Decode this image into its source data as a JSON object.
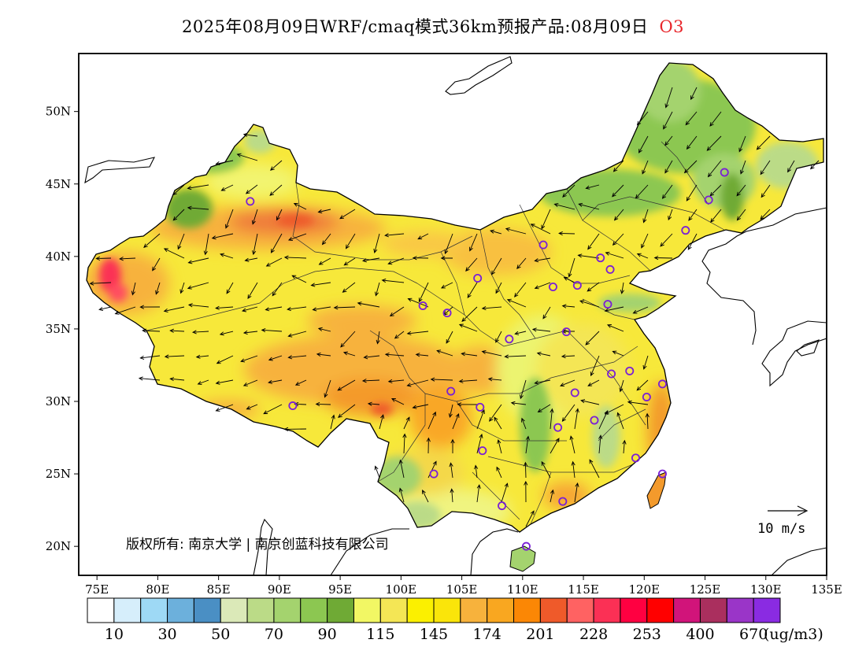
{
  "title": {
    "text": "2025年08月09日WRF/cmaq模式36km预报产品:08月09日",
    "species": "O3",
    "species_color": "#e8262b"
  },
  "map": {
    "lon_ticks": [
      "75E",
      "80E",
      "85E",
      "90E",
      "95E",
      "100E",
      "105E",
      "110E",
      "115E",
      "120E",
      "125E",
      "130E",
      "135E"
    ],
    "lat_ticks": [
      "20N",
      "25N",
      "30N",
      "35N",
      "40N",
      "45N",
      "50N"
    ],
    "lon_range": [
      73.5,
      135
    ],
    "lat_range": [
      18,
      54
    ],
    "copyright": "版权所有: 南京大学 | 南京创蓝科技有限公司",
    "wind_reference": "10 m/s"
  },
  "colorbar": {
    "unit": "(ug/m3)",
    "labels": [
      "10",
      "30",
      "50",
      "70",
      "90",
      "115",
      "145",
      "174",
      "201",
      "228",
      "253",
      "400",
      "670"
    ],
    "colors": [
      "#ffffff",
      "#d6eefb",
      "#9ed9f5",
      "#6cb0dc",
      "#4a8fc4",
      "#dbe9b8",
      "#bbdb87",
      "#a4d36e",
      "#8cc751",
      "#6faa35",
      "#f2f764",
      "#f4e655",
      "#fbf000",
      "#fae50a",
      "#f7b23c",
      "#f9a720",
      "#fb8705",
      "#ef5a2a",
      "#ff6262",
      "#fb3055",
      "#ff0041",
      "#ff0000",
      "#d1147a",
      "#aa2f5e",
      "#9a35c8",
      "#8a2be2"
    ]
  },
  "stations": [
    {
      "lon": 87.6,
      "lat": 43.8
    },
    {
      "lon": 101.8,
      "lat": 36.6
    },
    {
      "lon": 103.8,
      "lat": 36.1
    },
    {
      "lon": 106.3,
      "lat": 38.5
    },
    {
      "lon": 111.7,
      "lat": 40.8
    },
    {
      "lon": 112.5,
      "lat": 37.9
    },
    {
      "lon": 114.5,
      "lat": 38.0
    },
    {
      "lon": 116.4,
      "lat": 39.9
    },
    {
      "lon": 117.2,
      "lat": 39.1
    },
    {
      "lon": 123.4,
      "lat": 41.8
    },
    {
      "lon": 125.3,
      "lat": 43.9
    },
    {
      "lon": 126.6,
      "lat": 45.8
    },
    {
      "lon": 117.0,
      "lat": 36.7
    },
    {
      "lon": 113.6,
      "lat": 34.8
    },
    {
      "lon": 108.9,
      "lat": 34.3
    },
    {
      "lon": 104.1,
      "lat": 30.7
    },
    {
      "lon": 106.5,
      "lat": 29.6
    },
    {
      "lon": 91.1,
      "lat": 29.7
    },
    {
      "lon": 106.7,
      "lat": 26.6
    },
    {
      "lon": 102.7,
      "lat": 25.0
    },
    {
      "lon": 108.3,
      "lat": 22.8
    },
    {
      "lon": 113.3,
      "lat": 23.1
    },
    {
      "lon": 110.3,
      "lat": 20.0
    },
    {
      "lon": 112.9,
      "lat": 28.2
    },
    {
      "lon": 114.3,
      "lat": 30.6
    },
    {
      "lon": 115.9,
      "lat": 28.7
    },
    {
      "lon": 117.3,
      "lat": 31.9
    },
    {
      "lon": 118.8,
      "lat": 32.1
    },
    {
      "lon": 120.2,
      "lat": 30.3
    },
    {
      "lon": 121.5,
      "lat": 31.2
    },
    {
      "lon": 119.3,
      "lat": 26.1
    },
    {
      "lon": 121.5,
      "lat": 25.0
    }
  ]
}
